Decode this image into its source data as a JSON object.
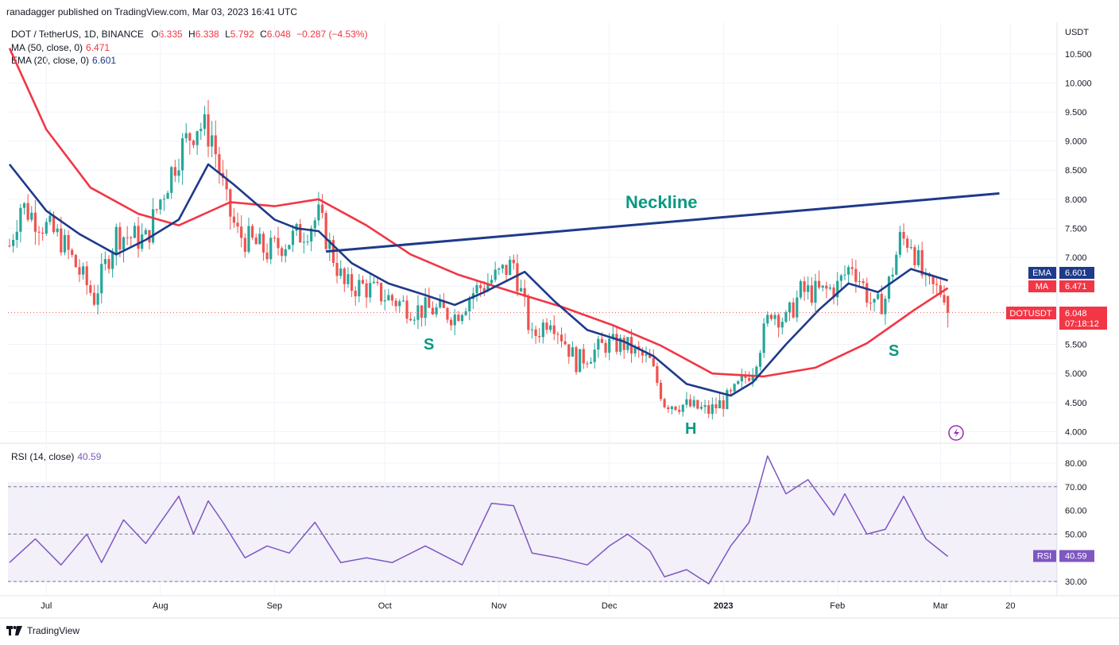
{
  "header": {
    "published": "ranadagger published on TradingView.com, Mar 03, 2023 16:41 UTC",
    "symbol": "DOT / TetherUS, 1D, BINANCE",
    "o_label": "O",
    "o_val": "6.335",
    "h_label": "H",
    "h_val": "6.338",
    "l_label": "L",
    "l_val": "5.792",
    "c_label": "C",
    "c_val": "6.048",
    "change": "−0.287 (−4.53%)",
    "ma_label": "MA (50, close, 0)",
    "ma_val": "6.471",
    "ema_label": "EMA (20, close, 0)",
    "ema_val": "6.601",
    "rsi_label": "RSI (14, close)",
    "rsi_val": "40.59"
  },
  "axis": {
    "currency": "USDT",
    "price_ticks": [
      "10.500",
      "10.000",
      "9.500",
      "9.000",
      "8.500",
      "8.000",
      "7.500",
      "7.000",
      "6.500",
      "6.000",
      "5.500",
      "5.000",
      "4.500",
      "4.000"
    ],
    "rsi_ticks": [
      "80.00",
      "70.00",
      "60.00",
      "50.00",
      "40.00",
      "30.00"
    ],
    "x_ticks": [
      "Jul",
      "Aug",
      "Sep",
      "Oct",
      "Nov",
      "Dec",
      "2023",
      "Feb",
      "Mar",
      "20"
    ]
  },
  "badges": {
    "ema_tag": "EMA",
    "ema_value": "6.601",
    "ma_tag": "MA",
    "ma_value": "6.471",
    "price_tag": "DOTUSDT",
    "price_value": "6.048",
    "countdown": "07:18:12",
    "rsi_tag": "RSI",
    "rsi_value": "40.59"
  },
  "annotations": {
    "neckline": "Neckline",
    "left_shoulder": "S",
    "head": "H",
    "right_shoulder": "S"
  },
  "footer": {
    "brand": "TradingView"
  },
  "colors": {
    "ma": "#f23645",
    "ema": "#1e3a8a",
    "rsi": "#7e57c2",
    "up": "#26a69a",
    "down": "#ef5350",
    "neckline": "#1e3a8a",
    "annotation": "#089981"
  },
  "chart_data": {
    "type": "candlestick",
    "price_range": [
      3.95,
      10.65
    ],
    "rsi_range": [
      27,
      84
    ],
    "rsi_band": [
      30,
      70
    ],
    "neckline": {
      "from": [
        "2022-09-15",
        7.1
      ],
      "to": [
        "2023-03-17",
        8.1
      ]
    },
    "ohlc_keyframes": [
      [
        "2022-06-21",
        7.2
      ],
      [
        "2022-06-24",
        7.9
      ],
      [
        "2022-07-05",
        7.3
      ],
      [
        "2022-07-14",
        6.3
      ],
      [
        "2022-07-20",
        7.4
      ],
      [
        "2022-07-28",
        7.3
      ],
      [
        "2022-08-01",
        8.0
      ],
      [
        "2022-08-06",
        8.8
      ],
      [
        "2022-08-11",
        9.3
      ],
      [
        "2022-08-15",
        9.1
      ],
      [
        "2022-08-19",
        7.9
      ],
      [
        "2022-08-22",
        7.4
      ],
      [
        "2022-08-30",
        7.1
      ],
      [
        "2022-09-08",
        7.4
      ],
      [
        "2022-09-13",
        7.7
      ],
      [
        "2022-09-20",
        6.5
      ],
      [
        "2022-09-25",
        6.5
      ],
      [
        "2022-10-02",
        6.3
      ],
      [
        "2022-10-09",
        6.1
      ],
      [
        "2022-10-14",
        6.1
      ],
      [
        "2022-10-20",
        6.0
      ],
      [
        "2022-10-25",
        6.4
      ],
      [
        "2022-11-01",
        6.7
      ],
      [
        "2022-11-05",
        6.9
      ],
      [
        "2022-11-10",
        5.6
      ],
      [
        "2022-11-15",
        6.0
      ],
      [
        "2022-11-22",
        5.2
      ],
      [
        "2022-11-30",
        5.5
      ],
      [
        "2022-12-05",
        5.5
      ],
      [
        "2022-12-12",
        5.2
      ],
      [
        "2022-12-16",
        4.5
      ],
      [
        "2022-12-22",
        4.45
      ],
      [
        "2022-12-28",
        4.35
      ],
      [
        "2023-01-03",
        4.6
      ],
      [
        "2023-01-09",
        5.1
      ],
      [
        "2023-01-14",
        6.1
      ],
      [
        "2023-01-18",
        5.9
      ],
      [
        "2023-01-22",
        6.4
      ],
      [
        "2023-01-28",
        6.4
      ],
      [
        "2023-02-01",
        6.5
      ],
      [
        "2023-02-05",
        6.9
      ],
      [
        "2023-02-11",
        6.1
      ],
      [
        "2023-02-14",
        6.3
      ],
      [
        "2023-02-18",
        7.3
      ],
      [
        "2023-02-21",
        7.3
      ],
      [
        "2023-02-25",
        6.5
      ],
      [
        "2023-03-02",
        6.4
      ],
      [
        "2023-03-03",
        6.048
      ]
    ],
    "ma50": [
      [
        "2022-06-21",
        10.6
      ],
      [
        "2022-07-01",
        9.2
      ],
      [
        "2022-07-13",
        8.2
      ],
      [
        "2022-07-26",
        7.75
      ],
      [
        "2022-08-06",
        7.55
      ],
      [
        "2022-08-20",
        7.95
      ],
      [
        "2022-09-01",
        7.88
      ],
      [
        "2022-09-13",
        8.0
      ],
      [
        "2022-09-26",
        7.55
      ],
      [
        "2022-10-08",
        7.05
      ],
      [
        "2022-10-21",
        6.7
      ],
      [
        "2022-11-04",
        6.42
      ],
      [
        "2022-11-18",
        6.15
      ],
      [
        "2022-12-02",
        5.83
      ],
      [
        "2022-12-15",
        5.48
      ],
      [
        "2022-12-29",
        5.0
      ],
      [
        "2023-01-12",
        4.95
      ],
      [
        "2023-01-26",
        5.1
      ],
      [
        "2023-02-09",
        5.52
      ],
      [
        "2023-02-22",
        6.1
      ],
      [
        "2023-03-03",
        6.471
      ]
    ],
    "ema20": [
      [
        "2022-06-21",
        8.6
      ],
      [
        "2022-07-01",
        7.8
      ],
      [
        "2022-07-10",
        7.4
      ],
      [
        "2022-07-20",
        7.05
      ],
      [
        "2022-07-28",
        7.3
      ],
      [
        "2022-08-06",
        7.65
      ],
      [
        "2022-08-14",
        8.6
      ],
      [
        "2022-08-21",
        8.25
      ],
      [
        "2022-09-01",
        7.65
      ],
      [
        "2022-09-07",
        7.5
      ],
      [
        "2022-09-13",
        7.45
      ],
      [
        "2022-09-22",
        6.9
      ],
      [
        "2022-10-02",
        6.55
      ],
      [
        "2022-10-12",
        6.35
      ],
      [
        "2022-10-20",
        6.18
      ],
      [
        "2022-10-28",
        6.4
      ],
      [
        "2022-11-08",
        6.75
      ],
      [
        "2022-11-16",
        6.25
      ],
      [
        "2022-11-25",
        5.75
      ],
      [
        "2022-12-05",
        5.55
      ],
      [
        "2022-12-13",
        5.3
      ],
      [
        "2022-12-22",
        4.82
      ],
      [
        "2023-01-03",
        4.62
      ],
      [
        "2023-01-09",
        4.85
      ],
      [
        "2023-01-18",
        5.5
      ],
      [
        "2023-01-27",
        6.1
      ],
      [
        "2023-02-04",
        6.55
      ],
      [
        "2023-02-12",
        6.4
      ],
      [
        "2023-02-21",
        6.8
      ],
      [
        "2023-03-03",
        6.601
      ]
    ],
    "rsi": [
      [
        "2022-06-21",
        38
      ],
      [
        "2022-06-28",
        48
      ],
      [
        "2022-07-05",
        37
      ],
      [
        "2022-07-12",
        50
      ],
      [
        "2022-07-16",
        38
      ],
      [
        "2022-07-22",
        56
      ],
      [
        "2022-07-28",
        46
      ],
      [
        "2022-08-06",
        66
      ],
      [
        "2022-08-10",
        50
      ],
      [
        "2022-08-14",
        64
      ],
      [
        "2022-08-18",
        55
      ],
      [
        "2022-08-24",
        40
      ],
      [
        "2022-08-30",
        45
      ],
      [
        "2022-09-05",
        42
      ],
      [
        "2022-09-12",
        55
      ],
      [
        "2022-09-19",
        38
      ],
      [
        "2022-09-26",
        40
      ],
      [
        "2022-10-03",
        38
      ],
      [
        "2022-10-12",
        45
      ],
      [
        "2022-10-22",
        37
      ],
      [
        "2022-10-30",
        63
      ],
      [
        "2022-11-05",
        62
      ],
      [
        "2022-11-10",
        42
      ],
      [
        "2022-11-17",
        40
      ],
      [
        "2022-11-25",
        37
      ],
      [
        "2022-12-01",
        45
      ],
      [
        "2022-12-06",
        50
      ],
      [
        "2022-12-12",
        43
      ],
      [
        "2022-12-16",
        32
      ],
      [
        "2022-12-22",
        35
      ],
      [
        "2022-12-28",
        29
      ],
      [
        "2023-01-03",
        45
      ],
      [
        "2023-01-08",
        55
      ],
      [
        "2023-01-13",
        83
      ],
      [
        "2023-01-18",
        67
      ],
      [
        "2023-01-24",
        73
      ],
      [
        "2023-01-31",
        58
      ],
      [
        "2023-02-03",
        67
      ],
      [
        "2023-02-09",
        50
      ],
      [
        "2023-02-14",
        52
      ],
      [
        "2023-02-19",
        66
      ],
      [
        "2023-02-25",
        48
      ],
      [
        "2023-03-03",
        40.59
      ]
    ]
  }
}
